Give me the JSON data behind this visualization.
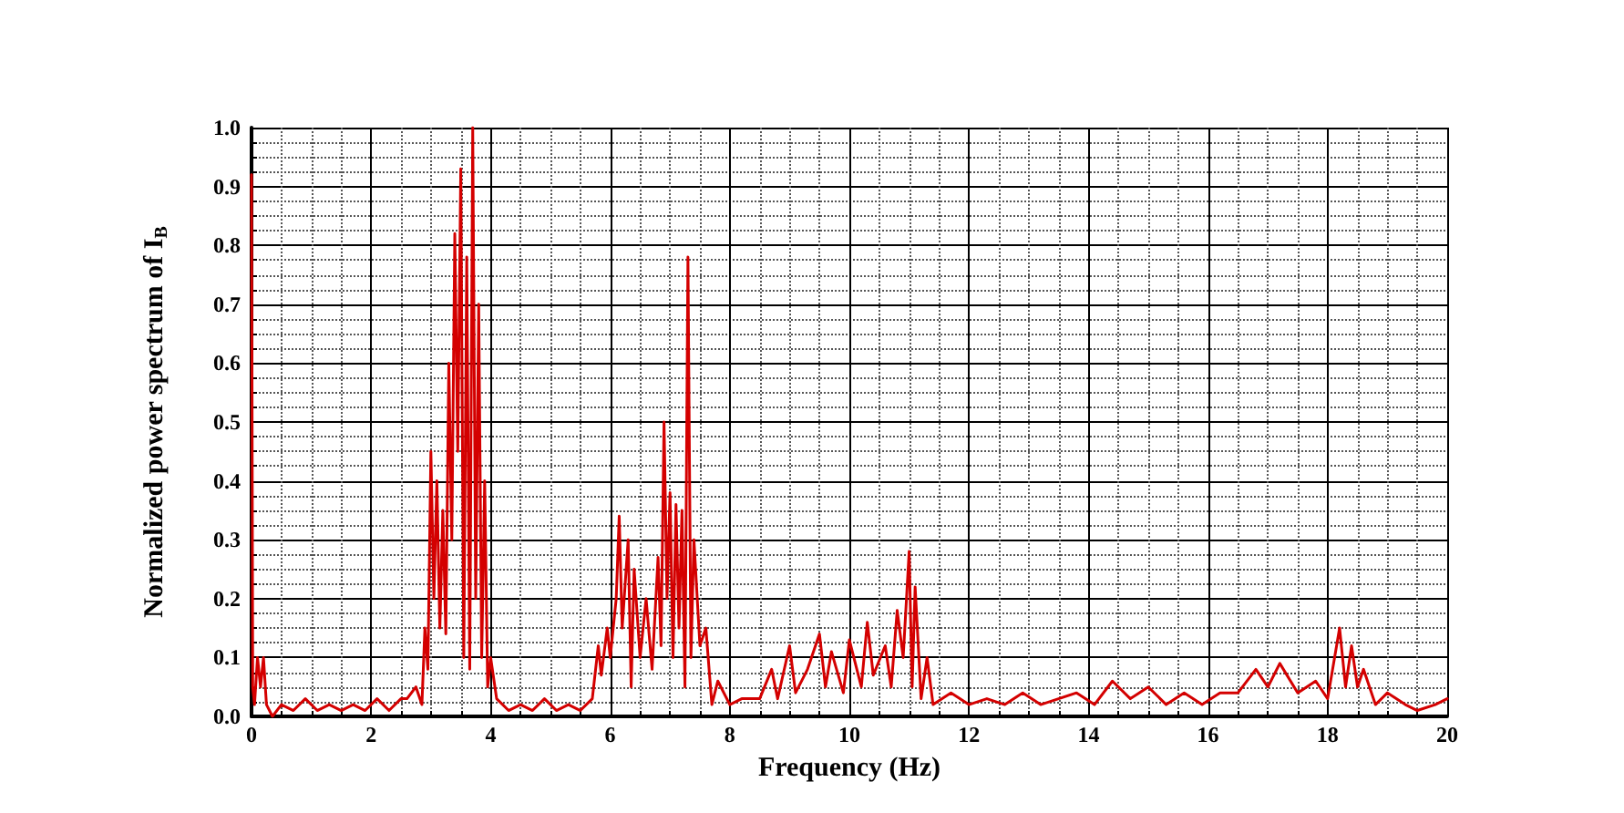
{
  "chart_data": {
    "type": "line",
    "xlabel": "Frequency (Hz)",
    "ylabel": "Normalized power spectrum of I$_{B}$",
    "xlim": [
      0,
      20
    ],
    "xticks": [
      0,
      2,
      4,
      6,
      8,
      10,
      12,
      14,
      16,
      18,
      20
    ],
    "ylim": [
      0,
      1
    ],
    "yticks": [
      {
        "value": 0,
        "label": "0.0"
      },
      0.1,
      0.2,
      0.3,
      0.4,
      0.5,
      0.6,
      0.7,
      0.8,
      0.9,
      {
        "value": 1,
        "label": "1.0"
      }
    ],
    "grid": true,
    "marker": "none",
    "line_style": "solid",
    "series": [
      {
        "color": "#d40000",
        "x": [
          0,
          0.02,
          0.05,
          0.1,
          0.15,
          0.2,
          0.25,
          0.35,
          0.5,
          0.7,
          0.9,
          1.1,
          1.3,
          1.5,
          1.7,
          1.9,
          2.1,
          2.3,
          2.5,
          2.6,
          2.75,
          2.85,
          2.9,
          2.95,
          3.0,
          3.05,
          3.1,
          3.15,
          3.2,
          3.25,
          3.3,
          3.35,
          3.4,
          3.45,
          3.5,
          3.55,
          3.6,
          3.65,
          3.7,
          3.75,
          3.8,
          3.85,
          3.9,
          3.95,
          4.0,
          4.1,
          4.3,
          4.5,
          4.7,
          4.9,
          5.1,
          5.3,
          5.5,
          5.7,
          5.8,
          5.85,
          5.95,
          6.0,
          6.1,
          6.15,
          6.2,
          6.3,
          6.35,
          6.4,
          6.5,
          6.6,
          6.7,
          6.8,
          6.85,
          6.9,
          6.95,
          7.0,
          7.05,
          7.1,
          7.15,
          7.2,
          7.25,
          7.3,
          7.35,
          7.4,
          7.5,
          7.6,
          7.7,
          7.8,
          8.0,
          8.2,
          8.5,
          8.7,
          8.8,
          9.0,
          9.1,
          9.3,
          9.5,
          9.6,
          9.7,
          9.9,
          10.0,
          10.2,
          10.3,
          10.4,
          10.6,
          10.7,
          10.8,
          10.9,
          11.0,
          11.05,
          11.1,
          11.2,
          11.3,
          11.4,
          11.7,
          12.0,
          12.3,
          12.6,
          12.9,
          13.2,
          13.5,
          13.8,
          14.1,
          14.4,
          14.7,
          15.0,
          15.3,
          15.6,
          15.9,
          16.2,
          16.5,
          16.8,
          17.0,
          17.2,
          17.5,
          17.8,
          18.0,
          18.2,
          18.3,
          18.4,
          18.5,
          18.6,
          18.8,
          19.0,
          19.3,
          19.5,
          19.8,
          20
        ],
        "values": [
          0.92,
          0.05,
          0.02,
          0.1,
          0.05,
          0.1,
          0.02,
          0.0,
          0.02,
          0.01,
          0.03,
          0.01,
          0.02,
          0.01,
          0.02,
          0.01,
          0.03,
          0.01,
          0.03,
          0.03,
          0.05,
          0.02,
          0.15,
          0.08,
          0.45,
          0.2,
          0.4,
          0.15,
          0.35,
          0.14,
          0.6,
          0.3,
          0.82,
          0.45,
          0.93,
          0.1,
          0.78,
          0.08,
          1.0,
          0.2,
          0.7,
          0.1,
          0.4,
          0.05,
          0.1,
          0.03,
          0.01,
          0.02,
          0.01,
          0.03,
          0.01,
          0.02,
          0.01,
          0.03,
          0.12,
          0.07,
          0.15,
          0.1,
          0.2,
          0.34,
          0.15,
          0.3,
          0.05,
          0.25,
          0.1,
          0.2,
          0.08,
          0.27,
          0.12,
          0.5,
          0.2,
          0.38,
          0.1,
          0.36,
          0.15,
          0.35,
          0.05,
          0.78,
          0.1,
          0.3,
          0.12,
          0.15,
          0.02,
          0.06,
          0.02,
          0.03,
          0.03,
          0.08,
          0.03,
          0.12,
          0.04,
          0.08,
          0.14,
          0.05,
          0.11,
          0.04,
          0.13,
          0.05,
          0.16,
          0.07,
          0.12,
          0.05,
          0.18,
          0.1,
          0.28,
          0.05,
          0.22,
          0.03,
          0.1,
          0.02,
          0.04,
          0.02,
          0.03,
          0.02,
          0.04,
          0.02,
          0.03,
          0.04,
          0.02,
          0.06,
          0.03,
          0.05,
          0.02,
          0.04,
          0.02,
          0.04,
          0.04,
          0.08,
          0.05,
          0.09,
          0.04,
          0.06,
          0.03,
          0.15,
          0.05,
          0.12,
          0.05,
          0.08,
          0.02,
          0.04,
          0.02,
          0.01,
          0.02,
          0.03
        ]
      }
    ]
  }
}
